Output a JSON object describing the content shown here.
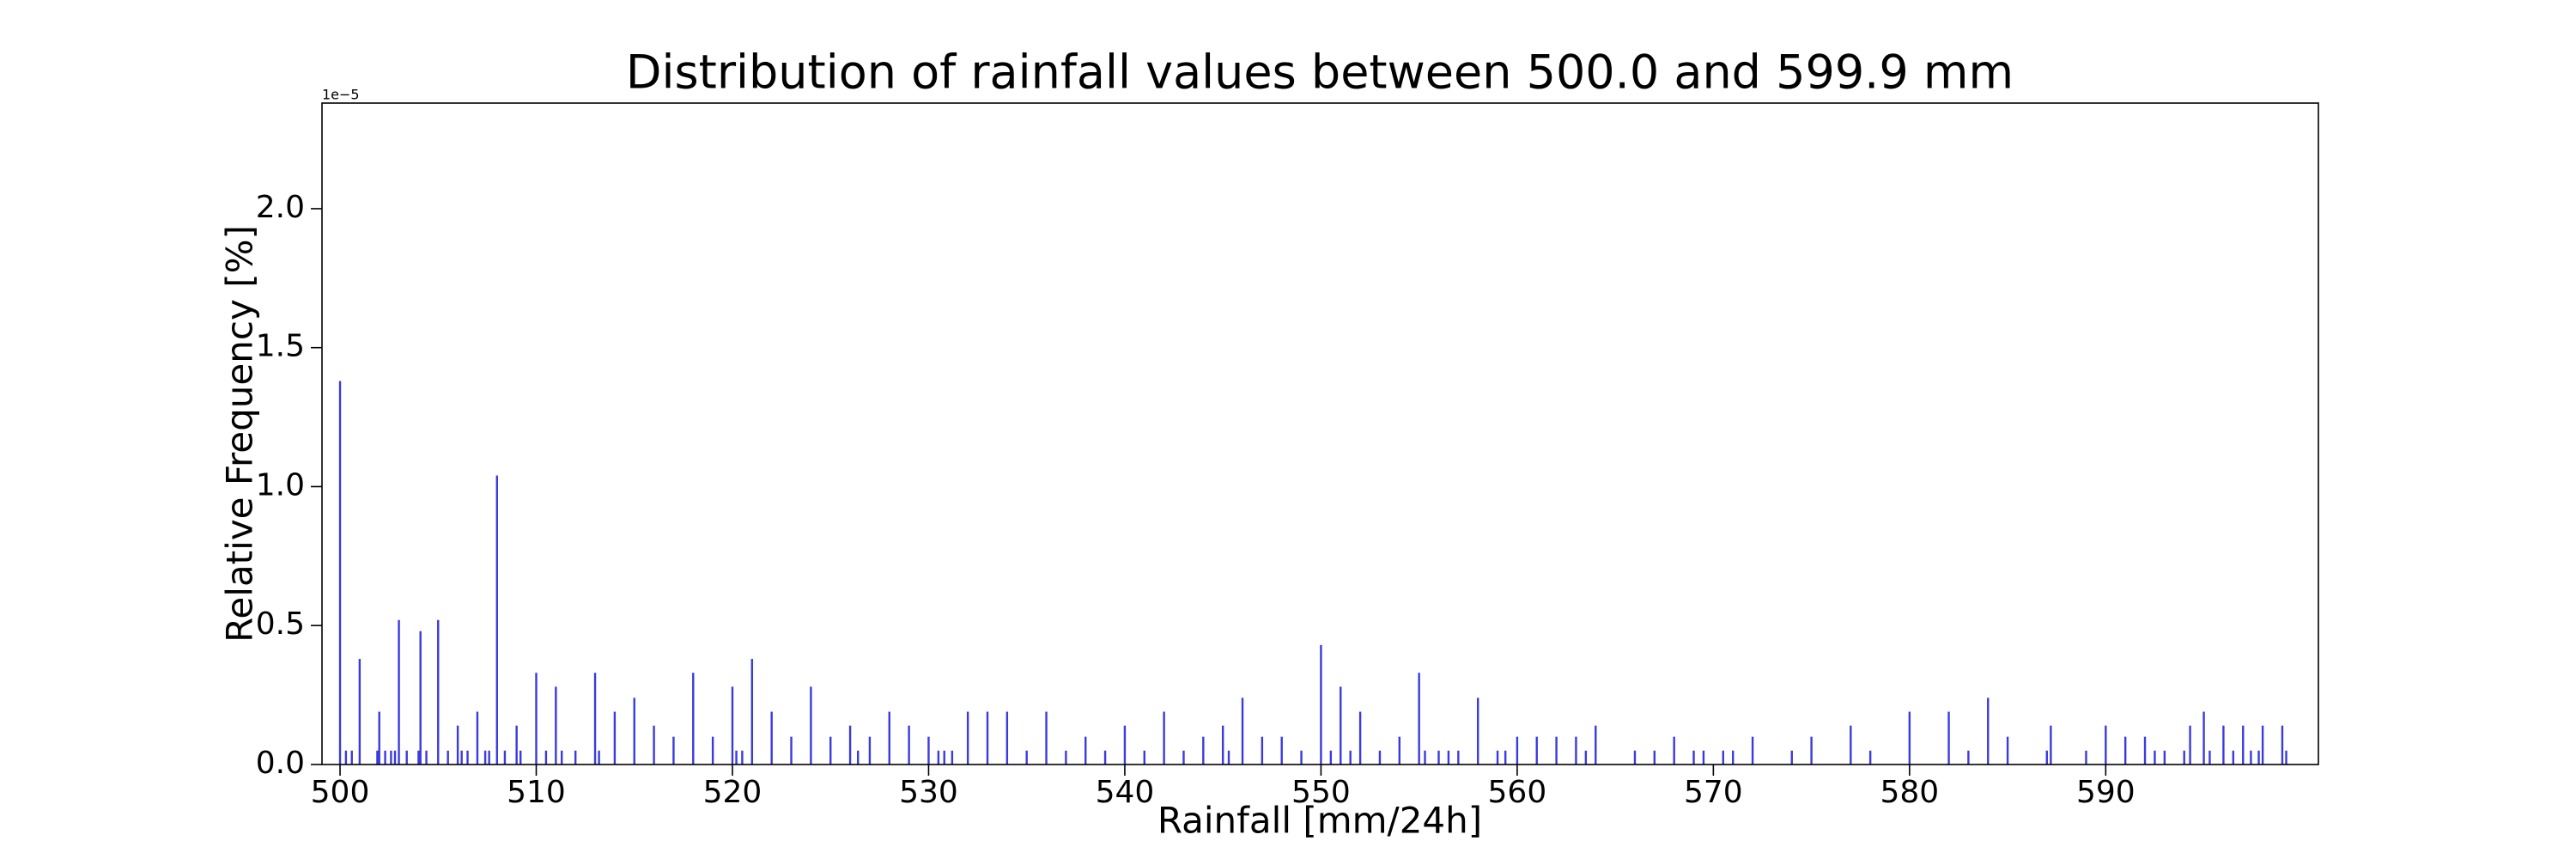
{
  "chart_data": {
    "type": "bar",
    "title": "Distribution of rainfall values between 500.0 and 599.9 mm",
    "x_label": "Rainfall [mm/24h]",
    "y_label": "Relative Frequency [%]",
    "y_offset_label": "1e−5",
    "color": "#3a3ae0",
    "xlim": [
      499.08,
      600.84
    ],
    "ylim": [
      0,
      2.38
    ],
    "xticks": [
      500,
      510,
      520,
      530,
      540,
      550,
      560,
      570,
      580,
      590
    ],
    "yticks": [
      {
        "value": 0,
        "label": "0.0"
      },
      {
        "value": 0.5,
        "label": "0.5"
      },
      {
        "value": 1,
        "label": "1.0"
      },
      {
        "value": 1.5,
        "label": "1.5"
      },
      {
        "value": 2,
        "label": "2.0"
      }
    ],
    "x": [
      500.0,
      500.3,
      500.6,
      501.0,
      501.9,
      502.0,
      502.3,
      502.6,
      502.8,
      503.0,
      503.4,
      504.0,
      504.1,
      504.4,
      505.0,
      505.5,
      506.0,
      506.2,
      506.5,
      507.0,
      507.4,
      507.6,
      508.0,
      508.4,
      509.0,
      509.2,
      510.0,
      510.5,
      511.0,
      511.3,
      512.0,
      513.0,
      513.2,
      514.0,
      515.0,
      516.0,
      517.0,
      518.0,
      519.0,
      520.0,
      520.2,
      520.5,
      521.0,
      522.0,
      523.0,
      524.0,
      525.0,
      526.0,
      526.4,
      527.0,
      528.0,
      529.0,
      530.0,
      530.5,
      530.8,
      531.2,
      532.0,
      533.0,
      534.0,
      535.0,
      536.0,
      537.0,
      538.0,
      539.0,
      540.0,
      541.0,
      542.0,
      543.0,
      544.0,
      545.0,
      545.3,
      546.0,
      547.0,
      548.0,
      549.0,
      550.0,
      550.5,
      551.0,
      551.5,
      552.0,
      553.0,
      554.0,
      555.0,
      555.3,
      556.0,
      556.5,
      557.0,
      558.0,
      559.0,
      559.4,
      560.0,
      561.0,
      562.0,
      563.0,
      563.5,
      564.0,
      566.0,
      567.0,
      568.0,
      569.0,
      569.5,
      570.5,
      571.0,
      572.0,
      574.0,
      575.0,
      577.0,
      578.0,
      580.0,
      582.0,
      583.0,
      584.0,
      585.0,
      587.0,
      587.2,
      589.0,
      590.0,
      591.0,
      592.0,
      592.5,
      593.0,
      594.0,
      594.3,
      595.0,
      595.3,
      596.0,
      596.5,
      597.0,
      597.4,
      597.8,
      598.0,
      599.0,
      599.2
    ],
    "values": [
      1.38,
      0.05,
      0.05,
      0.38,
      0.05,
      0.19,
      0.05,
      0.05,
      0.05,
      0.52,
      0.05,
      0.05,
      0.48,
      0.05,
      0.52,
      0.05,
      0.14,
      0.05,
      0.05,
      0.19,
      0.05,
      0.05,
      1.04,
      0.05,
      0.14,
      0.05,
      0.33,
      0.05,
      0.28,
      0.05,
      0.05,
      0.33,
      0.05,
      0.19,
      0.24,
      0.14,
      0.1,
      0.33,
      0.1,
      0.28,
      0.05,
      0.05,
      0.38,
      0.19,
      0.1,
      0.28,
      0.1,
      0.14,
      0.05,
      0.1,
      0.19,
      0.14,
      0.1,
      0.05,
      0.05,
      0.05,
      0.19,
      0.19,
      0.19,
      0.05,
      0.19,
      0.05,
      0.1,
      0.05,
      0.14,
      0.05,
      0.19,
      0.05,
      0.1,
      0.14,
      0.05,
      0.24,
      0.1,
      0.1,
      0.05,
      0.43,
      0.05,
      0.28,
      0.05,
      0.19,
      0.05,
      0.1,
      0.33,
      0.05,
      0.05,
      0.05,
      0.05,
      0.24,
      0.05,
      0.05,
      0.1,
      0.1,
      0.1,
      0.1,
      0.05,
      0.14,
      0.05,
      0.05,
      0.1,
      0.05,
      0.05,
      0.05,
      0.05,
      0.1,
      0.05,
      0.1,
      0.14,
      0.05,
      0.19,
      0.19,
      0.05,
      0.24,
      0.1,
      0.05,
      0.14,
      0.05,
      0.14,
      0.1,
      0.1,
      0.05,
      0.05,
      0.05,
      0.14,
      0.19,
      0.05,
      0.14,
      0.05,
      0.14,
      0.05,
      0.05,
      0.14,
      0.14,
      0.05
    ]
  }
}
